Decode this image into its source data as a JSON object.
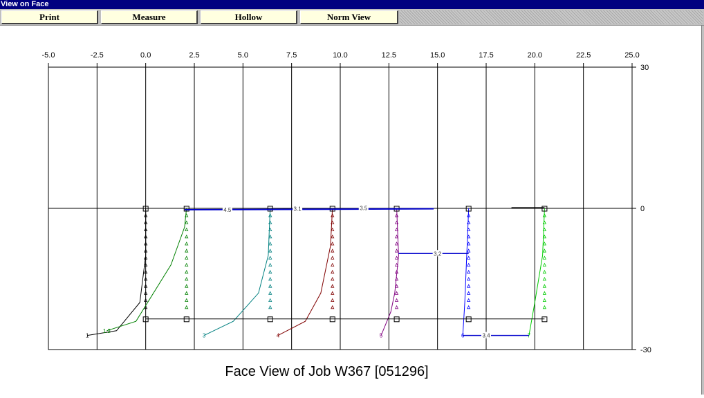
{
  "window": {
    "title": "View on Face"
  },
  "toolbar": {
    "buttons": [
      {
        "label": "Print"
      },
      {
        "label": "Measure"
      },
      {
        "label": "Hollow"
      },
      {
        "label": "Norm View"
      }
    ]
  },
  "chart_data": {
    "type": "line",
    "title": "Face View of Job W367 [051296]",
    "xlabel": "",
    "ylabel": "",
    "xlim": [
      -5.0,
      25.0
    ],
    "ylim": [
      -30,
      30
    ],
    "x_ticks": [
      "-5.0",
      "-2.5",
      "0.0",
      "2.5",
      "5.0",
      "7.5",
      "10.0",
      "12.5",
      "15.0",
      "17.5",
      "20.0",
      "22.5",
      "25.0"
    ],
    "y_ticks": [
      "30",
      "0",
      "-30"
    ],
    "grid": true,
    "series": [
      {
        "color": "#000000",
        "points": [
          [
            -3.0,
            -27
          ],
          [
            -1.5,
            -26
          ],
          [
            -0.3,
            -20
          ],
          [
            0,
            -10
          ],
          [
            0,
            0
          ]
        ]
      },
      {
        "color": "#008000",
        "points": [
          [
            -2.0,
            -26
          ],
          [
            -0.5,
            -24
          ],
          [
            1.3,
            -12
          ],
          [
            2.0,
            -4
          ],
          [
            2.1,
            0
          ]
        ]
      },
      {
        "color": "#008080",
        "points": [
          [
            3.0,
            -27
          ],
          [
            4.5,
            -24
          ],
          [
            5.8,
            -18
          ],
          [
            6.3,
            -10
          ],
          [
            6.4,
            0
          ]
        ]
      },
      {
        "color": "#800000",
        "points": [
          [
            6.8,
            -27
          ],
          [
            8.2,
            -24
          ],
          [
            9.0,
            -18
          ],
          [
            9.5,
            -8
          ],
          [
            9.6,
            0
          ]
        ]
      },
      {
        "color": "#800080",
        "points": [
          [
            12.1,
            -27
          ],
          [
            12.6,
            -22
          ],
          [
            12.8,
            -18
          ],
          [
            13.0,
            -10
          ],
          [
            12.9,
            0
          ]
        ]
      },
      {
        "color": "#0000ff",
        "points": [
          [
            16.3,
            -27
          ],
          [
            16.4,
            -20
          ],
          [
            16.5,
            -10
          ],
          [
            16.6,
            0
          ]
        ]
      },
      {
        "color": "#00cc00",
        "points": [
          [
            19.7,
            -27
          ],
          [
            20.0,
            -20
          ],
          [
            20.4,
            -10
          ],
          [
            20.5,
            0
          ]
        ]
      }
    ],
    "point_labels": [
      "1",
      "1.2",
      "3",
      "4",
      "5",
      "6",
      "7"
    ],
    "measurements": [
      "4.5",
      "3.1",
      "3.5",
      "3.2",
      "3.4"
    ]
  },
  "colors": {
    "titlebar": "#000080",
    "button_face": "#ffffe0",
    "toolbar": "#c0c0c0"
  }
}
